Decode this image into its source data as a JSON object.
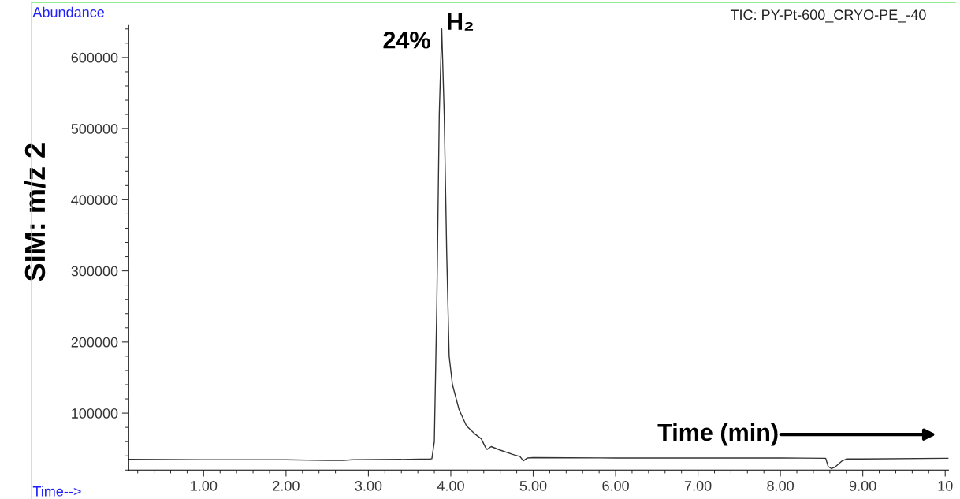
{
  "chart_data": {
    "type": "line",
    "title": "TIC: PY-Pt-600_CRYO-PE_-40",
    "ylabel": "SIM: m/z 2",
    "annotations": [
      "Abundance",
      "Time-->",
      "Time (min)",
      {
        "text": "24%",
        "x": 3.89,
        "y": 640000
      },
      {
        "text": "H₂",
        "x": 3.89,
        "y": 640000
      }
    ],
    "x": [
      0.09,
      1.0,
      2.0,
      2.5,
      2.7,
      2.8,
      3.5,
      3.75,
      3.77,
      3.8,
      3.83,
      3.86,
      3.89,
      3.92,
      3.95,
      3.98,
      4.02,
      4.1,
      4.19,
      4.3,
      4.37,
      4.42,
      4.44,
      4.49,
      4.6,
      4.75,
      4.84,
      4.88,
      4.93,
      5.0,
      6.0,
      7.0,
      8.0,
      8.55,
      8.58,
      8.62,
      8.66,
      8.75,
      8.8,
      9.0,
      10.0,
      10.04
    ],
    "series": [
      {
        "color": "#333333",
        "values": [
          35000,
          34500,
          34500,
          33500,
          33500,
          34500,
          35000,
          35500,
          36000,
          60000,
          250000,
          520000,
          640000,
          520000,
          326000,
          180000,
          140000,
          105000,
          82000,
          70000,
          64000,
          52000,
          49000,
          53000,
          48000,
          42000,
          39000,
          33000,
          37000,
          37500,
          37000,
          37000,
          37000,
          36500,
          25000,
          22000,
          24000,
          33000,
          35500,
          35500,
          36500,
          36500
        ]
      }
    ],
    "xlim": [
      0.09,
      10.04
    ],
    "ylim": [
      20000,
      645000
    ],
    "xticks": [
      {
        "value": 1,
        "label": "1.00"
      },
      {
        "value": 2,
        "label": "2.00"
      },
      {
        "value": 3,
        "label": "3.00"
      },
      {
        "value": 4,
        "label": "4.00"
      },
      {
        "value": 5,
        "label": "5.00"
      },
      {
        "value": 6,
        "label": "6.00"
      },
      {
        "value": 7,
        "label": "7.00"
      },
      {
        "value": 8,
        "label": "8.00"
      },
      {
        "value": 9,
        "label": "9.00"
      },
      {
        "value": 10,
        "label": "10"
      }
    ],
    "yticks": [
      100000,
      200000,
      300000,
      400000,
      500000,
      600000
    ],
    "grid": false,
    "legend": false,
    "marker": "none",
    "line_style": "solid"
  }
}
